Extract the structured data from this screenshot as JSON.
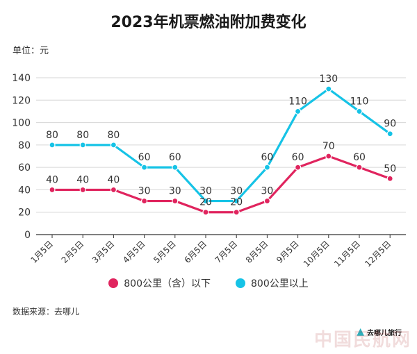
{
  "chart_data": {
    "type": "line",
    "title": "2023年机票燃油附加费变化",
    "unit_label": "单位：元",
    "categories": [
      "1月5日",
      "2月5日",
      "3月5日",
      "4月5日",
      "5月5日",
      "6月5日",
      "7月5日",
      "8月5日",
      "9月5日",
      "10月5日",
      "11月5日",
      "12月5日"
    ],
    "series": [
      {
        "name": "800公里（含）以下",
        "color": "#e0245e",
        "values": [
          40,
          40,
          40,
          30,
          30,
          20,
          20,
          30,
          60,
          70,
          60,
          50
        ]
      },
      {
        "name": "800公里以上",
        "color": "#16c3e6",
        "values": [
          80,
          80,
          80,
          60,
          60,
          30,
          30,
          60,
          110,
          130,
          110,
          90
        ]
      }
    ],
    "ylim": [
      0,
      140
    ],
    "yticks": [
      0,
      20,
      40,
      60,
      80,
      100,
      120,
      140
    ],
    "xlabel": "",
    "ylabel": "",
    "grid": true,
    "legend_position": "bottom"
  },
  "source": "数据来源：去哪儿",
  "logo_text": "去哪儿旅行",
  "watermark": "中国民航网"
}
